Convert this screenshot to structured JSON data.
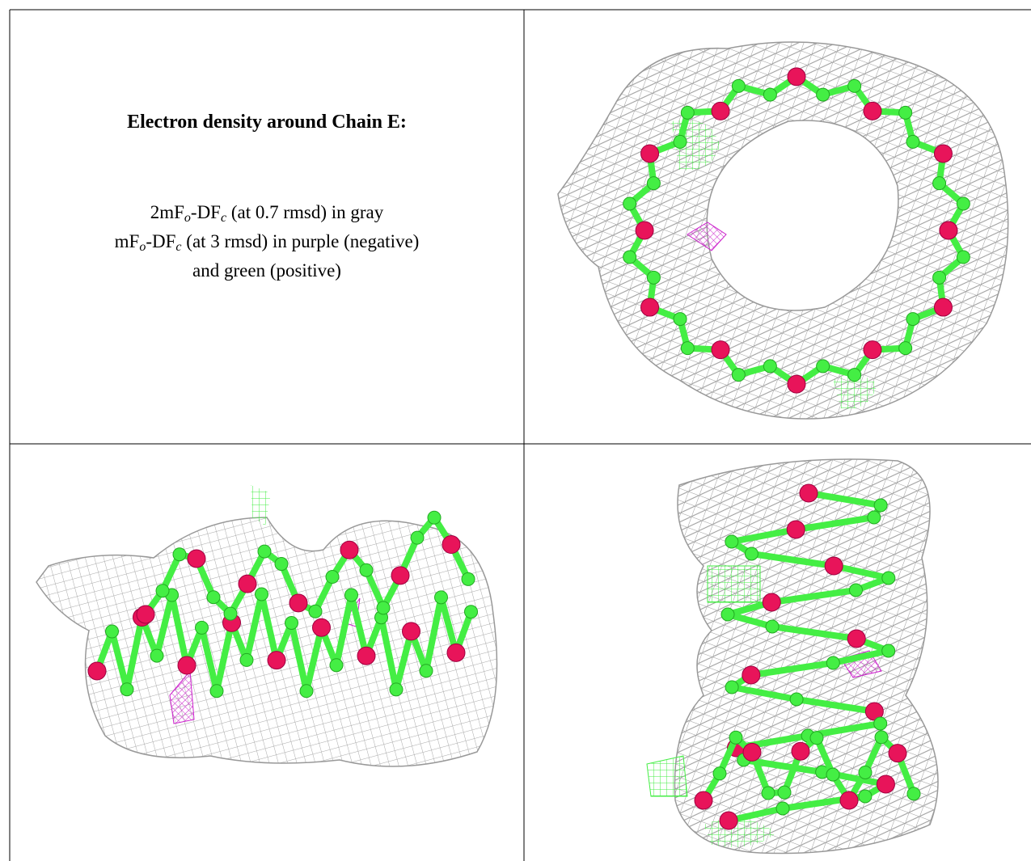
{
  "caption": {
    "title": "Electron density around Chain E:",
    "lines": [
      [
        "2mF",
        "o",
        "-DF",
        "c",
        " (at 0.7 rmsd) in gray"
      ],
      [
        "mF",
        "o",
        "-DF",
        "c",
        " (at 3 rmsd) in purple (negative)"
      ],
      [
        "and green (positive)"
      ]
    ]
  }
}
